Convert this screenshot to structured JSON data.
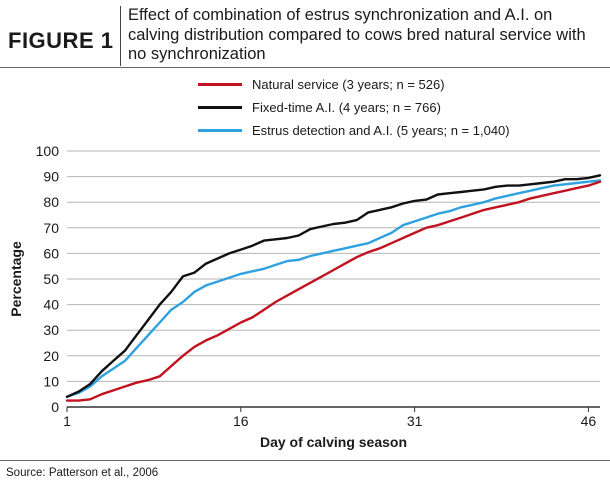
{
  "figure": {
    "label": "FIGURE 1",
    "title": "Effect of combination of estrus synchronization and A.I. on calving distribution compared to cows bred natural service with no synchronization",
    "source": "Source: Patterson et al., 2006"
  },
  "chart_data": {
    "type": "line",
    "xlabel": "Day of calving season",
    "ylabel": "Percentage",
    "xlim": [
      1,
      47
    ],
    "ylim": [
      0,
      100
    ],
    "x_ticks": [
      1,
      16,
      31,
      46
    ],
    "y_ticks": [
      0,
      10,
      20,
      30,
      40,
      50,
      60,
      70,
      80,
      90,
      100
    ],
    "grid": "horizontal",
    "legend_position": "top-right",
    "series": [
      {
        "name": "Natural service (3 years; n = 526)",
        "color": "#c1121f",
        "x": [
          1,
          2,
          3,
          4,
          5,
          6,
          7,
          8,
          9,
          10,
          11,
          12,
          13,
          14,
          15,
          16,
          17,
          18,
          19,
          20,
          21,
          22,
          23,
          24,
          25,
          26,
          27,
          28,
          29,
          30,
          31,
          32,
          33,
          34,
          35,
          36,
          37,
          38,
          39,
          40,
          41,
          42,
          43,
          44,
          45,
          46,
          47
        ],
        "y": [
          2.5,
          2.5,
          3,
          5,
          6.5,
          8,
          9.5,
          10.5,
          12,
          16,
          20,
          23.5,
          26,
          28,
          30.5,
          33,
          35,
          38,
          41,
          43.5,
          46,
          48.5,
          51,
          53.5,
          56,
          58.5,
          60.5,
          62,
          64,
          66,
          68,
          70,
          71,
          72.5,
          74,
          75.5,
          77,
          78,
          79,
          80,
          81.5,
          82.5,
          83.5,
          84.5,
          85.5,
          86.5,
          88
        ]
      },
      {
        "name": "Fixed-time A.I. (4 years; n = 766)",
        "color": "#111111",
        "x": [
          1,
          2,
          3,
          4,
          5,
          6,
          7,
          8,
          9,
          10,
          11,
          12,
          13,
          14,
          15,
          16,
          17,
          18,
          19,
          20,
          21,
          22,
          23,
          24,
          25,
          26,
          27,
          28,
          29,
          30,
          31,
          32,
          33,
          34,
          35,
          36,
          37,
          38,
          39,
          40,
          41,
          42,
          43,
          44,
          45,
          46,
          47
        ],
        "y": [
          4,
          6,
          9,
          14,
          18,
          22,
          28,
          34,
          40,
          45,
          51,
          52.5,
          56,
          58,
          60,
          61.5,
          63,
          65,
          65.5,
          66,
          67,
          69.5,
          70.5,
          71.5,
          72,
          73,
          76,
          77,
          78,
          79.5,
          80.5,
          81,
          83,
          83.5,
          84,
          84.5,
          85,
          86,
          86.5,
          86.5,
          87,
          87.5,
          88,
          89,
          89,
          89.5,
          90.5
        ]
      },
      {
        "name": "Estrus detection and A.I. (5 years; n = 1,040)",
        "color": "#2ea1e0",
        "x": [
          1,
          2,
          3,
          4,
          5,
          6,
          7,
          8,
          9,
          10,
          11,
          12,
          13,
          14,
          15,
          16,
          17,
          18,
          19,
          20,
          21,
          22,
          23,
          24,
          25,
          26,
          27,
          28,
          29,
          30,
          31,
          32,
          33,
          34,
          35,
          36,
          37,
          38,
          39,
          40,
          41,
          42,
          43,
          44,
          45,
          46,
          47
        ],
        "y": [
          4,
          5.5,
          8,
          12,
          15,
          18,
          23,
          28,
          33,
          38,
          41,
          45,
          47.5,
          49,
          50.5,
          52,
          53,
          54,
          55.5,
          57,
          57.5,
          59,
          60,
          61,
          62,
          63,
          64,
          66,
          68,
          71,
          72.5,
          74,
          75.5,
          76.5,
          78,
          79,
          80,
          81.5,
          82.5,
          83.5,
          84.5,
          85.5,
          86.5,
          87,
          87.5,
          88,
          88.5
        ]
      }
    ]
  }
}
